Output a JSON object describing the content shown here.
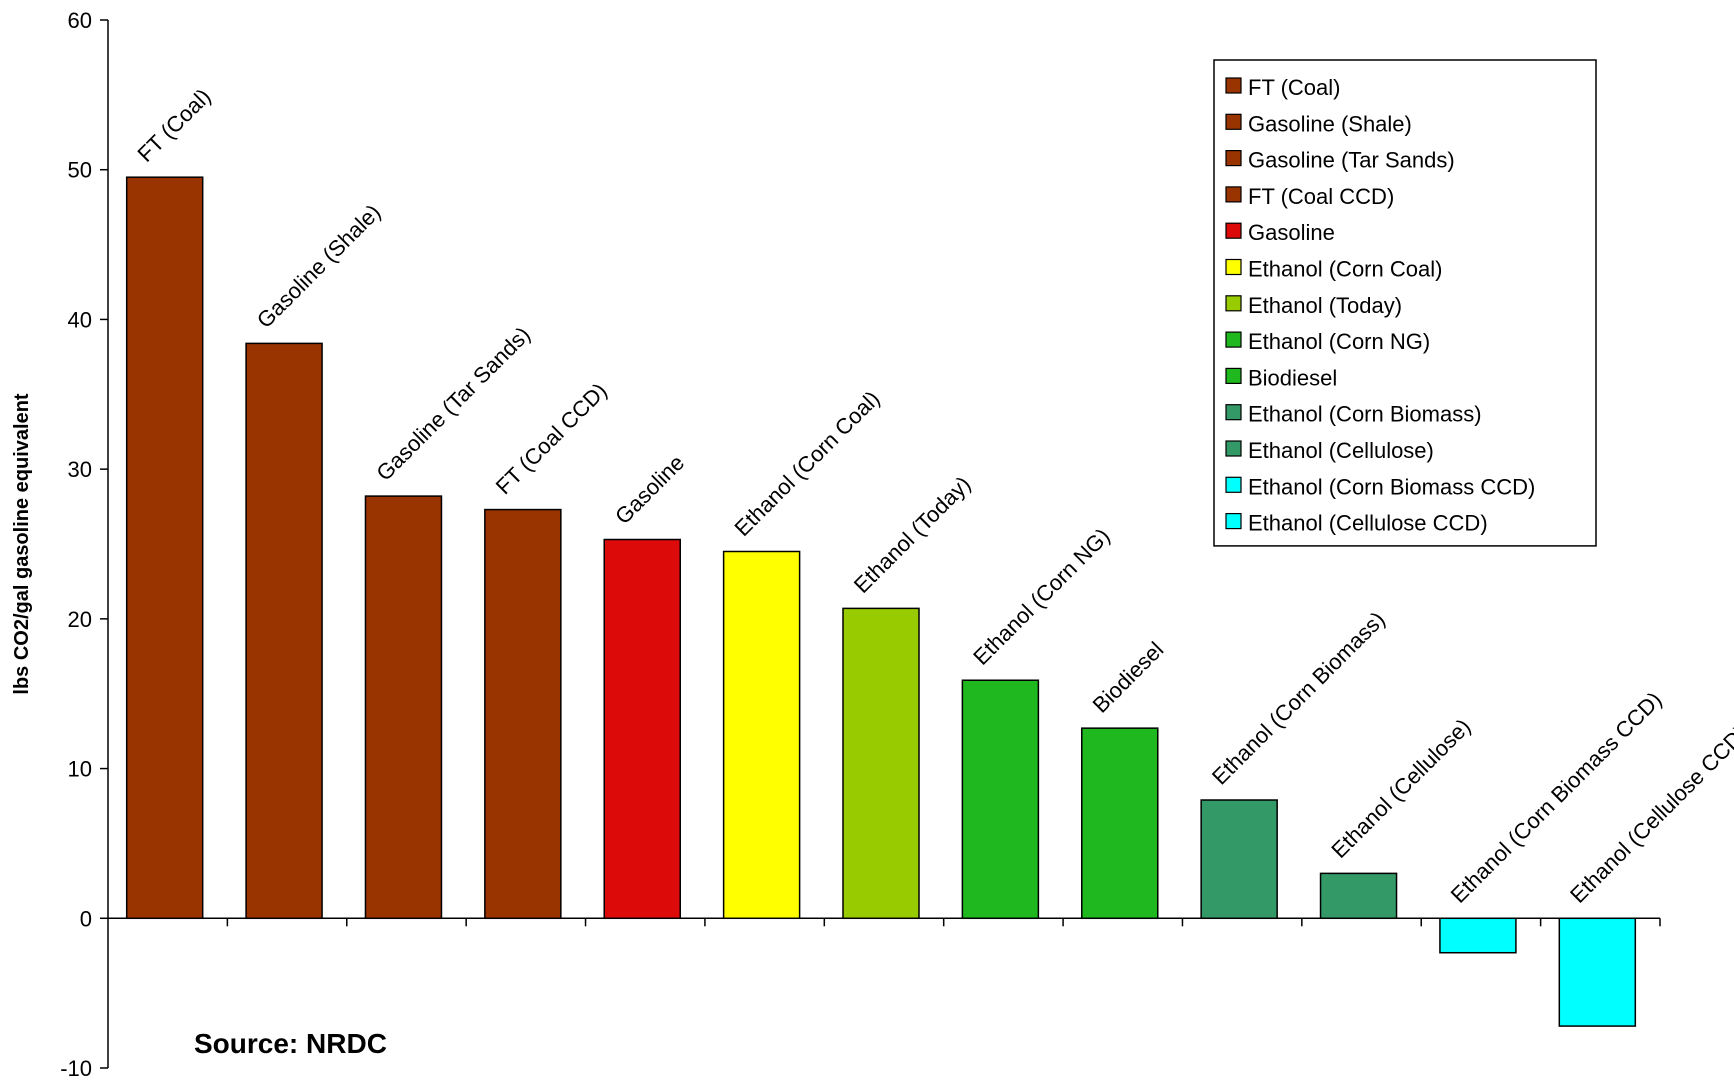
{
  "chart_data": {
    "type": "bar",
    "ylabel": "lbs CO2/gal gasoline equivalent",
    "xlabel": "",
    "ylim": [
      -10,
      60
    ],
    "y_ticks": [
      "-10",
      "0",
      "10",
      "20",
      "30",
      "40",
      "50",
      "60"
    ],
    "grid": false,
    "legend_position": "top-right",
    "annotation": "Source: NRDC",
    "categories": [
      "FT (Coal)",
      "Gasoline (Shale)",
      "Gasoline (Tar Sands)",
      "FT (Coal CCD)",
      "Gasoline",
      "Ethanol (Corn Coal)",
      "Ethanol (Today)",
      "Ethanol (Corn NG)",
      "Biodiesel",
      "Ethanol (Corn Biomass)",
      "Ethanol (Cellulose)",
      "Ethanol (Corn Biomass CCD)",
      "Ethanol (Cellulose CCD)"
    ],
    "values": [
      49.5,
      38.4,
      28.2,
      27.3,
      25.3,
      24.5,
      20.7,
      15.9,
      12.7,
      7.9,
      3.0,
      -2.3,
      -7.2
    ],
    "colors": [
      "#993300",
      "#993300",
      "#993300",
      "#993300",
      "#dd0a0a",
      "#ffff00",
      "#99cc00",
      "#1fb81f",
      "#1fb81f",
      "#339966",
      "#339966",
      "#00ffff",
      "#00ffff"
    ]
  }
}
